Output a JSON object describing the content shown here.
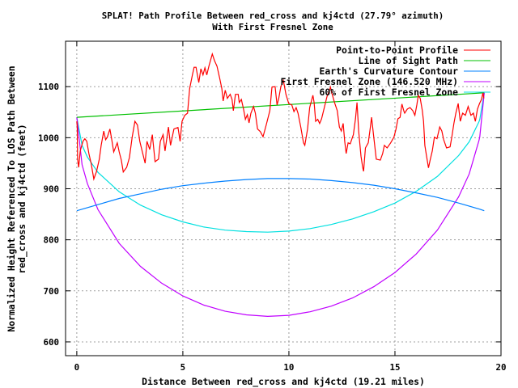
{
  "chart_data": {
    "type": "line",
    "title": "SPLAT! Path Profile Between red_cross and kj4ctd (27.79° azimuth)",
    "subtitle": "With First Fresnel Zone",
    "xlabel": "Distance Between red_cross and kj4ctd (19.21 miles)",
    "ylabel": [
      "Normalized Height Referenced To LOS Path Between",
      "red_cross and kj4ctd (feet)"
    ],
    "xlim": [
      -0.53,
      20
    ],
    "ylim": [
      573,
      1189
    ],
    "xticks": [
      "0",
      "5",
      "10",
      "15",
      "20"
    ],
    "xtick_values": [
      0,
      5,
      10,
      15,
      20
    ],
    "yticks": [
      "600",
      "700",
      "800",
      "900",
      "1000",
      "1100"
    ],
    "ytick_values": [
      600,
      700,
      800,
      900,
      1000,
      1100
    ],
    "grid": true,
    "legend_position": "top-right",
    "series": [
      {
        "name": "Point-to-Point Profile",
        "color": "#ff0000",
        "x": [
          0,
          0.02,
          0.04,
          0.09,
          0.16,
          0.29,
          0.38,
          0.47,
          0.57,
          0.68,
          0.8,
          0.93,
          1.06,
          1.15,
          1.27,
          1.36,
          1.44,
          1.56,
          1.65,
          1.74,
          1.91,
          2.0,
          2.1,
          2.19,
          2.35,
          2.48,
          2.61,
          2.74,
          2.86,
          2.97,
          3.09,
          3.22,
          3.31,
          3.44,
          3.56,
          3.69,
          3.85,
          3.94,
          4.07,
          4.16,
          4.32,
          4.42,
          4.58,
          4.77,
          4.87,
          4.96,
          5.09,
          5.22,
          5.32,
          5.45,
          5.53,
          5.62,
          5.75,
          5.85,
          5.95,
          6.04,
          6.13,
          6.23,
          6.39,
          6.49,
          6.61,
          6.74,
          6.84,
          6.9,
          7.0,
          7.1,
          7.23,
          7.32,
          7.38,
          7.48,
          7.61,
          7.66,
          7.76,
          7.86,
          7.95,
          8.04,
          8.12,
          8.21,
          8.33,
          8.42,
          8.52,
          8.65,
          8.78,
          8.93,
          9.1,
          9.2,
          9.35,
          9.44,
          9.52,
          9.62,
          9.74,
          9.86,
          9.99,
          10.14,
          10.24,
          10.34,
          10.43,
          10.56,
          10.69,
          10.75,
          10.88,
          10.98,
          11.13,
          11.19,
          11.26,
          11.36,
          11.45,
          11.54,
          11.67,
          11.79,
          11.9,
          11.96,
          12.02,
          12.15,
          12.28,
          12.38,
          12.47,
          12.56,
          12.63,
          12.7,
          12.79,
          12.89,
          13.04,
          13.14,
          13.21,
          13.29,
          13.4,
          13.48,
          13.52,
          13.61,
          13.74,
          13.83,
          13.9,
          14.0,
          14.12,
          14.31,
          14.42,
          14.5,
          14.63,
          14.8,
          14.95,
          15.05,
          15.14,
          15.24,
          15.33,
          15.43,
          15.46,
          15.58,
          15.71,
          15.84,
          15.94,
          16.03,
          16.1,
          16.19,
          16.29,
          16.35,
          16.41,
          16.48,
          16.58,
          16.67,
          16.76,
          16.86,
          16.98,
          17.11,
          17.21,
          17.3,
          17.43,
          17.6,
          17.68,
          17.78,
          17.87,
          17.98,
          18.08,
          18.19,
          18.32,
          18.45,
          18.58,
          18.7,
          18.79,
          18.89,
          18.99,
          19.08,
          19.15,
          19.19
        ],
        "y": [
          1032,
          1021,
          958,
          942,
          974,
          993,
          998,
          993,
          969,
          949,
          919,
          934,
          958,
          985,
          1013,
          996,
          1001,
          1017,
          996,
          972,
          990,
          972,
          956,
          933,
          942,
          961,
          1001,
          1032,
          1025,
          993,
          972,
          950,
          993,
          977,
          1006,
          953,
          958,
          993,
          1006,
          974,
          1021,
          985,
          1017,
          1020,
          993,
          1032,
          1044,
          1048,
          1096,
          1123,
          1138,
          1138,
          1108,
          1135,
          1123,
          1137,
          1123,
          1140,
          1164,
          1151,
          1140,
          1116,
          1096,
          1072,
          1093,
          1077,
          1085,
          1075,
          1053,
          1085,
          1085,
          1069,
          1075,
          1056,
          1036,
          1045,
          1029,
          1048,
          1061,
          1048,
          1017,
          1012,
          1002,
          1025,
          1053,
          1099,
          1100,
          1064,
          1077,
          1100,
          1112,
          1085,
          1067,
          1064,
          1051,
          1059,
          1048,
          1021,
          990,
          985,
          1017,
          1059,
          1083,
          1069,
          1032,
          1036,
          1028,
          1037,
          1059,
          1080,
          1091,
          1099,
          1088,
          1069,
          1053,
          1021,
          1013,
          1028,
          993,
          969,
          990,
          988,
          1006,
          1037,
          1069,
          1012,
          964,
          942,
          934,
          980,
          990,
          1017,
          1040,
          1001,
          958,
          956,
          969,
          985,
          980,
          990,
          1001,
          1017,
          1037,
          1040,
          1066,
          1051,
          1048,
          1056,
          1059,
          1053,
          1044,
          1064,
          1083,
          1077,
          1053,
          1032,
          985,
          966,
          941,
          958,
          974,
          1001,
          998,
          1021,
          1013,
          996,
          980,
          982,
          1001,
          1028,
          1048,
          1067,
          1032,
          1048,
          1044,
          1061,
          1044,
          1048,
          1032,
          1056,
          1067,
          1075,
          1088,
          1077
        ]
      },
      {
        "name": "Line of Sight Path",
        "color": "#00c000",
        "x": [
          0,
          19.21
        ],
        "y": [
          1040,
          1088
        ]
      },
      {
        "name": "Earth's Curvature Contour",
        "color": "#0080ff",
        "x": [
          0,
          1,
          2,
          3,
          4,
          5,
          6,
          7,
          8,
          9,
          10,
          11,
          12,
          13,
          14,
          15,
          16,
          17,
          18,
          19,
          19.21
        ],
        "y": [
          857,
          869,
          881,
          890,
          899,
          906,
          911,
          915,
          918,
          920,
          920,
          919,
          916,
          912,
          907,
          900,
          892,
          883,
          872,
          860,
          857
        ]
      },
      {
        "name": "First Fresnel Zone (146.520 MHz)",
        "color": "#c000ff",
        "x": [
          0,
          0.25,
          0.5,
          1,
          2,
          3,
          4,
          5,
          6,
          7,
          8,
          9,
          10,
          11,
          12,
          13,
          14,
          15,
          16,
          17,
          18,
          18.5,
          18.96,
          19,
          19.21
        ],
        "y": [
          1040,
          947,
          910,
          859,
          793,
          748,
          715,
          690,
          672,
          660,
          653,
          650,
          652,
          659,
          670,
          686,
          708,
          736,
          772,
          819,
          884,
          929,
          994,
          1002,
          1088
        ]
      },
      {
        "name": "60% of First Fresnel Zone",
        "color": "#00e0e0",
        "x": [
          0,
          0.25,
          0.5,
          1,
          2,
          3,
          4,
          5,
          6,
          7,
          8,
          9,
          10,
          11,
          12,
          13,
          14,
          15,
          16,
          17,
          18,
          18.5,
          18.96,
          19,
          19.21
        ],
        "y": [
          1040,
          985,
          962,
          932,
          894,
          868,
          849,
          835,
          825,
          819,
          816,
          815,
          817,
          822,
          830,
          841,
          855,
          872,
          895,
          924,
          965,
          992,
          1031,
          1036,
          1088
        ]
      }
    ]
  }
}
